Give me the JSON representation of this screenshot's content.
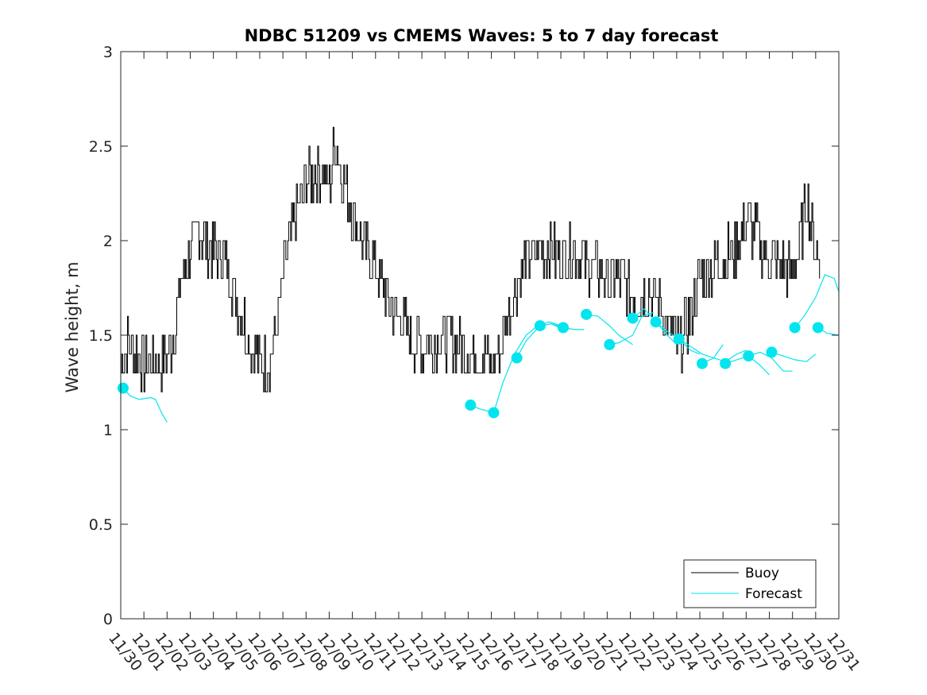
{
  "chart_data": {
    "type": "line",
    "title": "NDBC 51209 vs CMEMS Waves: 5 to 7 day forecast",
    "xlabel": "",
    "ylabel": "Wave height, m",
    "ylim": [
      0,
      3
    ],
    "yticks": [
      "0",
      "0.5",
      "1",
      "1.5",
      "2",
      "2.5",
      "3"
    ],
    "xlim_days": [
      0,
      31
    ],
    "xticks": [
      "11/30",
      "12/01",
      "12/02",
      "12/03",
      "12/04",
      "12/05",
      "12/06",
      "12/07",
      "12/08",
      "12/09",
      "12/10",
      "12/11",
      "12/12",
      "12/13",
      "12/14",
      "12/15",
      "12/16",
      "12/17",
      "12/18",
      "12/19",
      "12/20",
      "12/21",
      "12/22",
      "12/23",
      "12/24",
      "12/25",
      "12/26",
      "12/27",
      "12/28",
      "12/29",
      "12/30",
      "12/31"
    ],
    "grid": false,
    "legend": {
      "placement": "bottom-right",
      "entries": [
        "Buoy",
        "Forecast"
      ]
    },
    "colors": {
      "buoy": "#000000",
      "forecast": "#00e5ee"
    },
    "series": [
      {
        "name": "Buoy",
        "x_days": [
          0,
          0.3,
          0.7,
          1.0,
          1.5,
          2.0,
          2.3,
          2.6,
          3.0,
          3.3,
          3.7,
          4.0,
          4.5,
          5.0,
          5.5,
          6.0,
          6.3,
          6.6,
          7.0,
          7.3,
          7.7,
          8.0,
          8.3,
          8.7,
          9.0,
          9.3,
          9.5,
          9.8,
          10.0,
          10.3,
          10.7,
          11.0,
          11.5,
          12.0,
          12.5,
          13.0,
          13.5,
          14.0,
          14.5,
          15.0,
          15.5,
          16.0,
          16.3,
          16.6,
          17.0,
          17.5,
          18.0,
          18.5,
          19.0,
          19.5,
          20.0,
          20.5,
          21.0,
          21.5,
          22.0,
          22.3,
          22.7,
          23.0,
          23.5,
          24.0,
          24.3,
          24.7,
          25.0,
          25.5,
          26.0,
          26.5,
          27.0,
          27.3,
          27.7,
          28.0,
          28.5,
          29.0,
          29.3,
          29.6,
          30.0,
          30.2
        ],
        "y": [
          1.35,
          1.45,
          1.4,
          1.35,
          1.35,
          1.4,
          1.5,
          1.8,
          1.95,
          2.05,
          2.0,
          1.95,
          1.9,
          1.7,
          1.5,
          1.35,
          1.35,
          1.45,
          1.8,
          2.0,
          2.2,
          2.3,
          2.35,
          2.35,
          2.3,
          2.55,
          2.35,
          2.25,
          2.15,
          2.05,
          1.95,
          1.85,
          1.7,
          1.6,
          1.5,
          1.45,
          1.45,
          1.5,
          1.45,
          1.4,
          1.4,
          1.35,
          1.4,
          1.55,
          1.75,
          1.9,
          1.95,
          1.95,
          1.9,
          1.95,
          1.9,
          1.85,
          1.8,
          1.8,
          1.75,
          1.7,
          1.75,
          1.7,
          1.6,
          1.45,
          1.5,
          1.65,
          1.8,
          1.85,
          1.9,
          1.95,
          2.1,
          2.05,
          1.95,
          1.9,
          1.85,
          1.85,
          1.95,
          2.25,
          1.95,
          1.8
        ]
      },
      {
        "name": "Forecast",
        "segments": [
          {
            "x_days": [
              0.1,
              0.4,
              0.8,
              1.3,
              1.5,
              1.8,
              2.0
            ],
            "y": [
              1.22,
              1.18,
              1.16,
              1.17,
              1.16,
              1.08,
              1.04
            ]
          },
          {
            "x_days": [
              15.1,
              15.5,
              16.1
            ],
            "y": [
              1.13,
              1.11,
              1.09
            ]
          },
          {
            "x_days": [
              16.1,
              16.5,
              17.0,
              17.5,
              18.0,
              18.5,
              19.0
            ],
            "y": [
              1.09,
              1.25,
              1.4,
              1.5,
              1.55,
              1.57,
              1.55
            ]
          },
          {
            "x_days": [
              17.1,
              17.5,
              18.1,
              18.6,
              19.1
            ],
            "y": [
              1.38,
              1.47,
              1.55,
              1.56,
              1.53
            ]
          },
          {
            "x_days": [
              18.1,
              18.6,
              19.1,
              19.6,
              20.0
            ],
            "y": [
              1.55,
              1.56,
              1.54,
              1.53,
              1.53
            ]
          },
          {
            "x_days": [
              20.1,
              20.6,
              21.1,
              21.5,
              22.1
            ],
            "y": [
              1.61,
              1.6,
              1.55,
              1.5,
              1.45
            ]
          },
          {
            "x_days": [
              21.1,
              21.5,
              22.1,
              22.5,
              23.0
            ],
            "y": [
              1.45,
              1.46,
              1.5,
              1.6,
              1.62
            ]
          },
          {
            "x_days": [
              22.1,
              22.6,
              23.1,
              23.6,
              24.0
            ],
            "y": [
              1.59,
              1.64,
              1.57,
              1.5,
              1.45
            ]
          },
          {
            "x_days": [
              23.1,
              23.6,
              24.1,
              24.6,
              25.0
            ],
            "y": [
              1.57,
              1.52,
              1.48,
              1.42,
              1.4
            ]
          },
          {
            "x_days": [
              24.1,
              24.6,
              25.1,
              25.6,
              26.0
            ],
            "y": [
              1.48,
              1.44,
              1.4,
              1.38,
              1.45
            ]
          },
          {
            "x_days": [
              25.1,
              25.6,
              26.1,
              26.6,
              27.0
            ],
            "y": [
              1.35,
              1.38,
              1.36,
              1.4,
              1.42
            ]
          },
          {
            "x_days": [
              26.1,
              26.6,
              27.1,
              27.6,
              28.0
            ],
            "y": [
              1.35,
              1.37,
              1.39,
              1.34,
              1.29
            ]
          },
          {
            "x_days": [
              27.1,
              27.6,
              28.1,
              28.6,
              29.0
            ],
            "y": [
              1.39,
              1.41,
              1.38,
              1.31,
              1.31
            ]
          },
          {
            "x_days": [
              28.1,
              28.6,
              29.1,
              29.6,
              30.0
            ],
            "y": [
              1.41,
              1.39,
              1.37,
              1.36,
              1.4
            ]
          },
          {
            "x_days": [
              29.1,
              29.5,
              30.0,
              30.4,
              30.8,
              31.0
            ],
            "y": [
              1.54,
              1.6,
              1.7,
              1.82,
              1.8,
              1.73
            ]
          },
          {
            "x_days": [
              30.1,
              30.5,
              31.0
            ],
            "y": [
              1.54,
              1.51,
              1.5
            ]
          }
        ],
        "markers": {
          "x_days": [
            0.1,
            15.1,
            16.1,
            17.1,
            18.1,
            19.1,
            20.1,
            21.1,
            22.1,
            23.1,
            24.1,
            25.1,
            26.1,
            27.1,
            28.1,
            29.1,
            30.1
          ],
          "y": [
            1.22,
            1.13,
            1.09,
            1.38,
            1.55,
            1.54,
            1.61,
            1.45,
            1.59,
            1.57,
            1.48,
            1.35,
            1.35,
            1.39,
            1.41,
            1.54,
            1.54
          ]
        }
      }
    ]
  }
}
